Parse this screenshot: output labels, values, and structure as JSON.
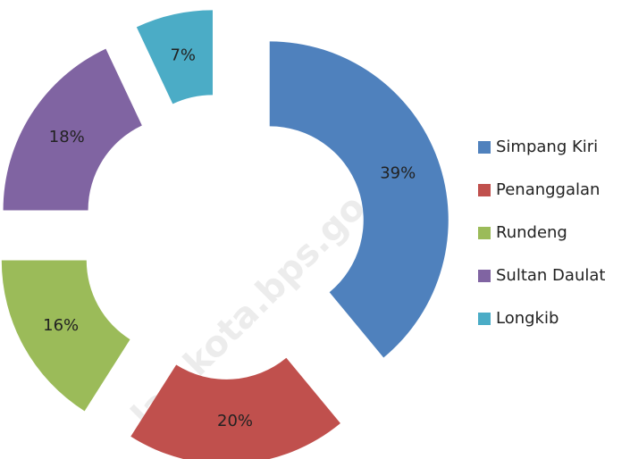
{
  "chart_data": {
    "type": "donut",
    "categories": [
      "Simpang Kiri",
      "Penanggalan",
      "Rundeng",
      "Sultan Daulat",
      "Longkib"
    ],
    "values": [
      39,
      20,
      16,
      18,
      7
    ],
    "value_labels": [
      "39%",
      "20%",
      "16%",
      "18%",
      "7%"
    ],
    "colors": [
      "#4f81bd",
      "#c0504d",
      "#9bbb59",
      "#8064a2",
      "#4bacc6"
    ],
    "legend": "right",
    "watermark": "lamkota.bps.go.id"
  }
}
